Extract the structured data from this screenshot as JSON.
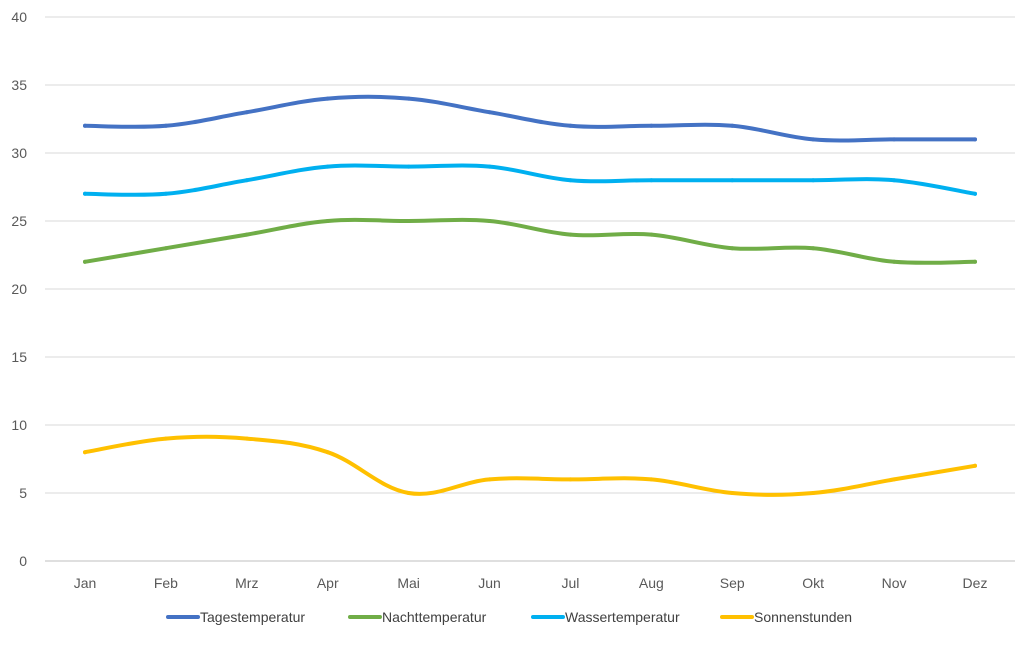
{
  "chart_data": {
    "type": "line",
    "categories": [
      "Jan",
      "Feb",
      "Mrz",
      "Apr",
      "Mai",
      "Jun",
      "Jul",
      "Aug",
      "Sep",
      "Okt",
      "Nov",
      "Dez"
    ],
    "series": [
      {
        "name": "Tagestemperatur",
        "color": "#4472C4",
        "values": [
          32,
          32,
          33,
          34,
          34,
          33,
          32,
          32,
          32,
          31,
          31,
          31
        ]
      },
      {
        "name": "Nachttemperatur",
        "color": "#70AD47",
        "values": [
          22,
          23,
          24,
          25,
          25,
          25,
          24,
          24,
          23,
          23,
          22,
          22
        ]
      },
      {
        "name": "Wassertemperatur",
        "color": "#00B0F0",
        "values": [
          27,
          27,
          28,
          29,
          29,
          29,
          28,
          28,
          28,
          28,
          28,
          27
        ]
      },
      {
        "name": "Sonnenstunden",
        "color": "#FFC000",
        "values": [
          8,
          9,
          9,
          8,
          5,
          6,
          6,
          6,
          5,
          5,
          6,
          7
        ]
      }
    ],
    "yticks": [
      "0",
      "5",
      "10",
      "15",
      "20",
      "25",
      "30",
      "35",
      "40"
    ],
    "ylim": [
      0,
      40
    ],
    "grid": true,
    "legend": "bottom",
    "title": "",
    "xlabel": "",
    "ylabel": ""
  }
}
